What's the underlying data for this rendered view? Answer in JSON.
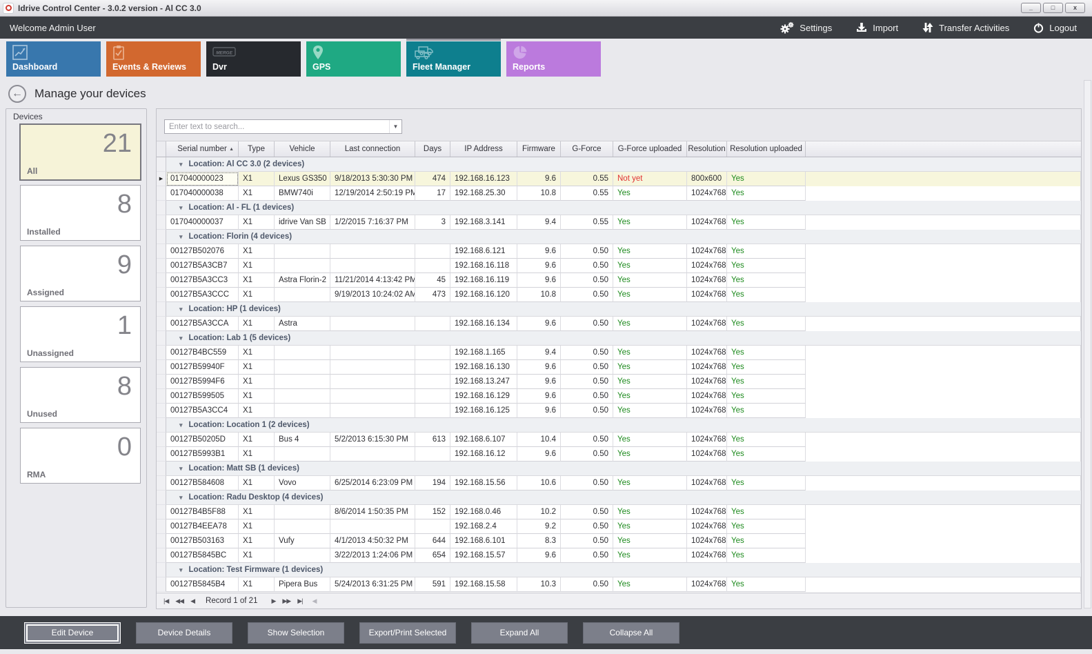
{
  "window": {
    "title": "Idrive Control Center - 3.0.2 version - Al CC 3.0",
    "controls": {
      "minimize": "_",
      "maximize": "□",
      "close": "x"
    }
  },
  "topbar": {
    "welcome": "Welcome Admin User",
    "actions": [
      {
        "label": "Settings",
        "icon": "gears-icon"
      },
      {
        "label": "Import",
        "icon": "import-icon"
      },
      {
        "label": "Transfer Activities",
        "icon": "transfer-icon"
      },
      {
        "label": "Logout",
        "icon": "power-icon"
      }
    ]
  },
  "tabs": [
    {
      "label": "Dashboard",
      "icon": "chart-icon",
      "color": "#3877ad",
      "selected": false
    },
    {
      "label": "Events & Reviews",
      "icon": "clipboard-icon",
      "color": "#d2682f",
      "selected": false
    },
    {
      "label": "Dvr",
      "icon": "merge-logo-icon",
      "color": "#26292e",
      "selected": false
    },
    {
      "label": "GPS",
      "icon": "map-pin-icon",
      "color": "#1fa983",
      "selected": false
    },
    {
      "label": "Fleet Manager",
      "icon": "trucks-icon",
      "color": "#0e7f8e",
      "selected": true
    },
    {
      "label": "Reports",
      "icon": "pie-chart-icon",
      "color": "#bb7add",
      "selected": false
    }
  ],
  "page": {
    "title": "Manage your devices"
  },
  "sidebar": {
    "title": "Devices",
    "cards": [
      {
        "count": "21",
        "label": "All",
        "selected": true
      },
      {
        "count": "8",
        "label": "Installed",
        "selected": false
      },
      {
        "count": "9",
        "label": "Assigned",
        "selected": false
      },
      {
        "count": "1",
        "label": "Unassigned",
        "selected": false
      },
      {
        "count": "8",
        "label": "Unused",
        "selected": false
      },
      {
        "count": "0",
        "label": "RMA",
        "selected": false
      }
    ]
  },
  "search": {
    "placeholder": "Enter text to search..."
  },
  "table": {
    "columns": [
      {
        "label": "Serial number",
        "sorted": true
      },
      {
        "label": "Type"
      },
      {
        "label": "Vehicle"
      },
      {
        "label": "Last connection"
      },
      {
        "label": "Days"
      },
      {
        "label": "IP Address"
      },
      {
        "label": "Firmware"
      },
      {
        "label": "G-Force"
      },
      {
        "label": "G-Force uploaded"
      },
      {
        "label": "Resolution"
      },
      {
        "label": "Resolution uploaded"
      }
    ],
    "status_colors": {
      "yes": "#1d8a1d",
      "not_yet": "#e03232"
    },
    "groups": [
      {
        "label": "Location: Al CC 3.0 (2 devices)",
        "rows": [
          {
            "serial": "017040000023",
            "type": "X1",
            "vehicle": "Lexus GS350",
            "last_connection": "9/18/2013 5:30:30 PM",
            "days": "474",
            "ip": "192.168.16.123",
            "firmware": "9.6",
            "g_force": "0.55",
            "g_force_uploaded": "Not yet",
            "resolution": "800x600",
            "resolution_uploaded": "Yes",
            "selected": true
          },
          {
            "serial": "017040000038",
            "type": "X1",
            "vehicle": "BMW740i",
            "last_connection": "12/19/2014 2:50:19 PM",
            "days": "17",
            "ip": "192.168.25.30",
            "firmware": "10.8",
            "g_force": "0.55",
            "g_force_uploaded": "Yes",
            "resolution": "1024x768",
            "resolution_uploaded": "Yes"
          }
        ]
      },
      {
        "label": "Location: Al - FL (1 devices)",
        "rows": [
          {
            "serial": "017040000037",
            "type": "X1",
            "vehicle": "idrive Van SB",
            "last_connection": "1/2/2015 7:16:37 PM",
            "days": "3",
            "ip": "192.168.3.141",
            "firmware": "9.4",
            "g_force": "0.55",
            "g_force_uploaded": "Yes",
            "resolution": "1024x768",
            "resolution_uploaded": "Yes"
          }
        ]
      },
      {
        "label": "Location: Florin (4 devices)",
        "rows": [
          {
            "serial": "00127B502076",
            "type": "X1",
            "vehicle": "",
            "last_connection": "",
            "days": "",
            "ip": "192.168.6.121",
            "firmware": "9.6",
            "g_force": "0.50",
            "g_force_uploaded": "Yes",
            "resolution": "1024x768",
            "resolution_uploaded": "Yes"
          },
          {
            "serial": "00127B5A3CB7",
            "type": "X1",
            "vehicle": "",
            "last_connection": "",
            "days": "",
            "ip": "192.168.16.118",
            "firmware": "9.6",
            "g_force": "0.50",
            "g_force_uploaded": "Yes",
            "resolution": "1024x768",
            "resolution_uploaded": "Yes"
          },
          {
            "serial": "00127B5A3CC3",
            "type": "X1",
            "vehicle": "Astra Florin-2",
            "last_connection": "11/21/2014 4:13:42 PM",
            "days": "45",
            "ip": "192.168.16.119",
            "firmware": "9.6",
            "g_force": "0.50",
            "g_force_uploaded": "Yes",
            "resolution": "1024x768",
            "resolution_uploaded": "Yes"
          },
          {
            "serial": "00127B5A3CCC",
            "type": "X1",
            "vehicle": "",
            "last_connection": "9/19/2013 10:24:02 AM",
            "days": "473",
            "ip": "192.168.16.120",
            "firmware": "10.8",
            "g_force": "0.50",
            "g_force_uploaded": "Yes",
            "resolution": "1024x768",
            "resolution_uploaded": "Yes"
          }
        ]
      },
      {
        "label": "Location: HP (1 devices)",
        "rows": [
          {
            "serial": "00127B5A3CCA",
            "type": "X1",
            "vehicle": "Astra",
            "last_connection": "",
            "days": "",
            "ip": "192.168.16.134",
            "firmware": "9.6",
            "g_force": "0.50",
            "g_force_uploaded": "Yes",
            "resolution": "1024x768",
            "resolution_uploaded": "Yes"
          }
        ]
      },
      {
        "label": "Location: Lab 1 (5 devices)",
        "rows": [
          {
            "serial": "00127B4BC559",
            "type": "X1",
            "vehicle": "",
            "last_connection": "",
            "days": "",
            "ip": "192.168.1.165",
            "firmware": "9.4",
            "g_force": "0.50",
            "g_force_uploaded": "Yes",
            "resolution": "1024x768",
            "resolution_uploaded": "Yes"
          },
          {
            "serial": "00127B59940F",
            "type": "X1",
            "vehicle": "",
            "last_connection": "",
            "days": "",
            "ip": "192.168.16.130",
            "firmware": "9.6",
            "g_force": "0.50",
            "g_force_uploaded": "Yes",
            "resolution": "1024x768",
            "resolution_uploaded": "Yes"
          },
          {
            "serial": "00127B5994F6",
            "type": "X1",
            "vehicle": "",
            "last_connection": "",
            "days": "",
            "ip": "192.168.13.247",
            "firmware": "9.6",
            "g_force": "0.50",
            "g_force_uploaded": "Yes",
            "resolution": "1024x768",
            "resolution_uploaded": "Yes"
          },
          {
            "serial": "00127B599505",
            "type": "X1",
            "vehicle": "",
            "last_connection": "",
            "days": "",
            "ip": "192.168.16.129",
            "firmware": "9.6",
            "g_force": "0.50",
            "g_force_uploaded": "Yes",
            "resolution": "1024x768",
            "resolution_uploaded": "Yes"
          },
          {
            "serial": "00127B5A3CC4",
            "type": "X1",
            "vehicle": "",
            "last_connection": "",
            "days": "",
            "ip": "192.168.16.125",
            "firmware": "9.6",
            "g_force": "0.50",
            "g_force_uploaded": "Yes",
            "resolution": "1024x768",
            "resolution_uploaded": "Yes"
          }
        ]
      },
      {
        "label": "Location: Location 1 (2 devices)",
        "rows": [
          {
            "serial": "00127B50205D",
            "type": "X1",
            "vehicle": "Bus 4",
            "last_connection": "5/2/2013 6:15:30 PM",
            "days": "613",
            "ip": "192.168.6.107",
            "firmware": "10.4",
            "g_force": "0.50",
            "g_force_uploaded": "Yes",
            "resolution": "1024x768",
            "resolution_uploaded": "Yes"
          },
          {
            "serial": "00127B5993B1",
            "type": "X1",
            "vehicle": "",
            "last_connection": "",
            "days": "",
            "ip": "192.168.16.12",
            "firmware": "9.6",
            "g_force": "0.50",
            "g_force_uploaded": "Yes",
            "resolution": "1024x768",
            "resolution_uploaded": "Yes"
          }
        ]
      },
      {
        "label": "Location: Matt SB (1 devices)",
        "rows": [
          {
            "serial": "00127B584608",
            "type": "X1",
            "vehicle": "Vovo",
            "last_connection": "6/25/2014 6:23:09 PM",
            "days": "194",
            "ip": "192.168.15.56",
            "firmware": "10.6",
            "g_force": "0.50",
            "g_force_uploaded": "Yes",
            "resolution": "1024x768",
            "resolution_uploaded": "Yes"
          }
        ]
      },
      {
        "label": "Location: Radu Desktop (4 devices)",
        "rows": [
          {
            "serial": "00127B4B5F88",
            "type": "X1",
            "vehicle": "",
            "last_connection": "8/6/2014 1:50:35 PM",
            "days": "152",
            "ip": "192.168.0.46",
            "firmware": "10.2",
            "g_force": "0.50",
            "g_force_uploaded": "Yes",
            "resolution": "1024x768",
            "resolution_uploaded": "Yes"
          },
          {
            "serial": "00127B4EEA78",
            "type": "X1",
            "vehicle": "",
            "last_connection": "",
            "days": "",
            "ip": "192.168.2.4",
            "firmware": "9.2",
            "g_force": "0.50",
            "g_force_uploaded": "Yes",
            "resolution": "1024x768",
            "resolution_uploaded": "Yes"
          },
          {
            "serial": "00127B503163",
            "type": "X1",
            "vehicle": "Vufy",
            "last_connection": "4/1/2013 4:50:32 PM",
            "days": "644",
            "ip": "192.168.6.101",
            "firmware": "8.3",
            "g_force": "0.50",
            "g_force_uploaded": "Yes",
            "resolution": "1024x768",
            "resolution_uploaded": "Yes"
          },
          {
            "serial": "00127B5845BC",
            "type": "X1",
            "vehicle": "",
            "last_connection": "3/22/2013 1:24:06 PM",
            "days": "654",
            "ip": "192.168.15.57",
            "firmware": "9.6",
            "g_force": "0.50",
            "g_force_uploaded": "Yes",
            "resolution": "1024x768",
            "resolution_uploaded": "Yes"
          }
        ]
      },
      {
        "label": "Location: Test Firmware (1 devices)",
        "rows": [
          {
            "serial": "00127B5845B4",
            "type": "X1",
            "vehicle": "Pipera Bus",
            "last_connection": "5/24/2013 6:31:25 PM",
            "days": "591",
            "ip": "192.168.15.58",
            "firmware": "10.3",
            "g_force": "0.50",
            "g_force_uploaded": "Yes",
            "resolution": "1024x768",
            "resolution_uploaded": "Yes"
          }
        ]
      }
    ]
  },
  "pager": {
    "record_text": "Record 1 of 21"
  },
  "footer": {
    "buttons": [
      "Edit Device",
      "Device Details",
      "Show Selection",
      "Export/Print Selected",
      "Expand All",
      "Collapse All"
    ]
  }
}
